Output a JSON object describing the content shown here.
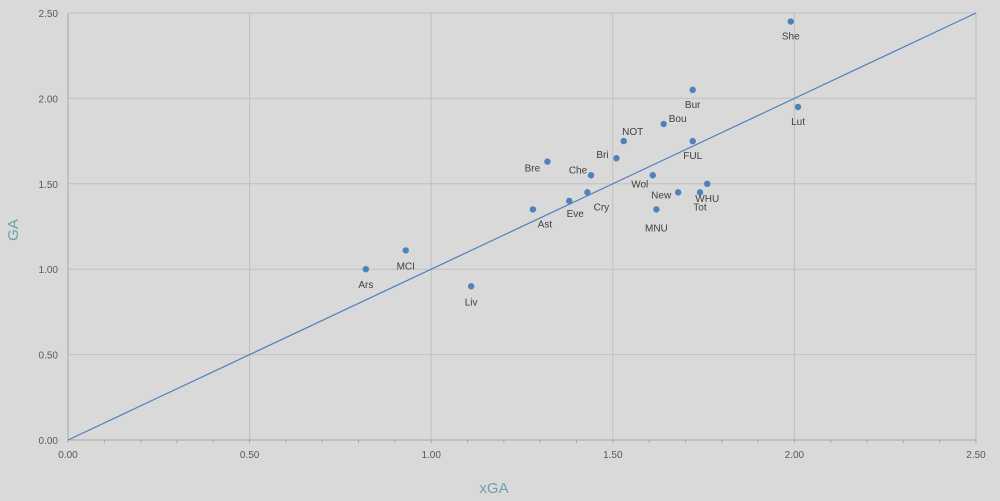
{
  "chart_data": {
    "type": "scatter",
    "title": "",
    "xlabel": "xGA",
    "ylabel": "GA",
    "xlim": [
      0,
      2.5
    ],
    "ylim": [
      0,
      2.5
    ],
    "x_ticks": [
      "0.00",
      "0.50",
      "1.00",
      "1.50",
      "2.00",
      "2.50"
    ],
    "y_ticks": [
      "0.00",
      "0.50",
      "1.00",
      "1.50",
      "2.00",
      "2.50"
    ],
    "grid": true,
    "legend": "none",
    "colors": {
      "point": "#4f81bd",
      "reference_line": "#4f81bd",
      "grid": "#c0c0c0",
      "background": "#d9d9d9"
    },
    "reference_line": {
      "from": [
        0,
        0
      ],
      "to": [
        2.5,
        2.5
      ]
    },
    "points": [
      {
        "label": "She",
        "x": 1.99,
        "y": 2.45
      },
      {
        "label": "Bur",
        "x": 1.72,
        "y": 2.05
      },
      {
        "label": "Lut",
        "x": 2.01,
        "y": 1.95
      },
      {
        "label": "Bou",
        "x": 1.64,
        "y": 1.85
      },
      {
        "label": "NOT",
        "x": 1.53,
        "y": 1.75
      },
      {
        "label": "FUL",
        "x": 1.72,
        "y": 1.75
      },
      {
        "label": "Bri",
        "x": 1.51,
        "y": 1.65
      },
      {
        "label": "Bre",
        "x": 1.32,
        "y": 1.63
      },
      {
        "label": "Che",
        "x": 1.44,
        "y": 1.55
      },
      {
        "label": "Wol",
        "x": 1.61,
        "y": 1.55
      },
      {
        "label": "New",
        "x": 1.68,
        "y": 1.45
      },
      {
        "label": "WHU",
        "x": 1.76,
        "y": 1.5
      },
      {
        "label": "Tot",
        "x": 1.74,
        "y": 1.45
      },
      {
        "label": "Cry",
        "x": 1.43,
        "y": 1.45
      },
      {
        "label": "Eve",
        "x": 1.38,
        "y": 1.4
      },
      {
        "label": "Ast",
        "x": 1.28,
        "y": 1.35
      },
      {
        "label": "MNU",
        "x": 1.62,
        "y": 1.35
      },
      {
        "label": "MCI",
        "x": 0.93,
        "y": 1.11
      },
      {
        "label": "Ars",
        "x": 0.82,
        "y": 1.0
      },
      {
        "label": "Liv",
        "x": 1.11,
        "y": 0.9
      }
    ]
  }
}
